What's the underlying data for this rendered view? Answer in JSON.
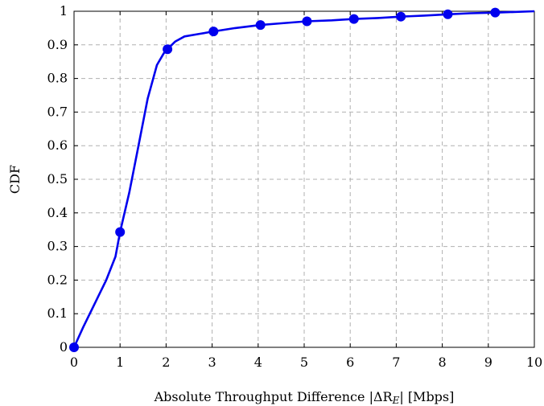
{
  "chart_data": {
    "type": "line",
    "title": "",
    "xlabel": "Absolute Throughput Difference",
    "xlabel_math": "|ΔR",
    "xlabel_math_sub": "E",
    "xlabel_math_end": "|",
    "xlabel_unit": "[Mbps]",
    "ylabel": "CDF",
    "xlim": [
      0,
      10
    ],
    "ylim": [
      0,
      1
    ],
    "x_ticks": [
      "0",
      "1",
      "2",
      "3",
      "4",
      "5",
      "6",
      "7",
      "8",
      "9",
      "10"
    ],
    "y_ticks": [
      "0",
      "0.1",
      "0.2",
      "0.3",
      "0.4",
      "0.5",
      "0.6",
      "0.7",
      "0.8",
      "0.9",
      "1"
    ],
    "grid": true,
    "series": [
      {
        "color": "#0000ee",
        "x": [
          0,
          0.2,
          0.45,
          0.7,
          0.9,
          1.0,
          1.2,
          1.4,
          1.6,
          1.8,
          1.95,
          2.03,
          2.2,
          2.4,
          2.7,
          3.03,
          3.5,
          4.05,
          4.5,
          5.06,
          5.6,
          6.08,
          6.6,
          7.1,
          7.6,
          8.12,
          8.6,
          9.15,
          9.6,
          10.0
        ],
        "y": [
          0,
          0.06,
          0.13,
          0.2,
          0.27,
          0.343,
          0.46,
          0.6,
          0.74,
          0.84,
          0.875,
          0.887,
          0.91,
          0.925,
          0.932,
          0.94,
          0.95,
          0.959,
          0.964,
          0.97,
          0.973,
          0.977,
          0.98,
          0.984,
          0.987,
          0.991,
          0.994,
          0.996,
          0.998,
          1.0
        ]
      }
    ],
    "markers": {
      "x": [
        0,
        1.0,
        2.03,
        3.03,
        4.05,
        5.06,
        6.08,
        7.1,
        8.12,
        9.15
      ],
      "y": [
        0,
        0.343,
        0.887,
        0.94,
        0.959,
        0.97,
        0.977,
        0.984,
        0.991,
        0.996
      ]
    }
  }
}
